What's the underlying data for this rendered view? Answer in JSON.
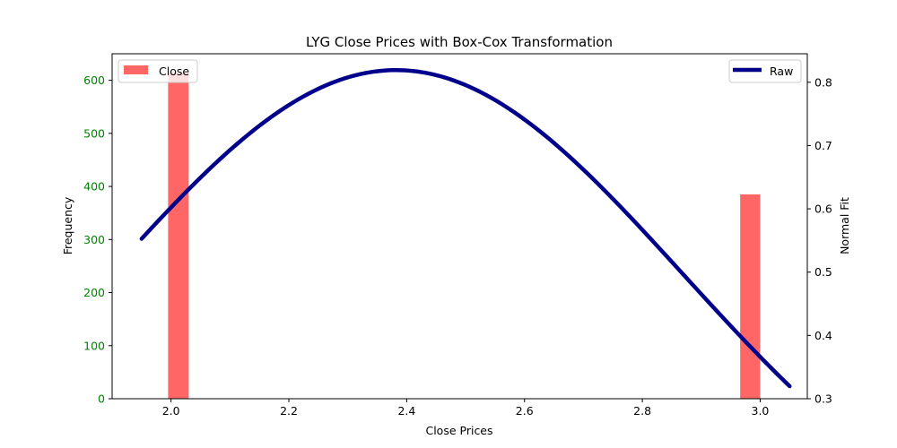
{
  "chart_data": {
    "type": "bar",
    "title": "LYG Close Prices with Box-Cox Transformation",
    "xlabel": "Close Prices",
    "ylabel_left": "Frequency",
    "ylabel_right": "Normal Fit",
    "xlim": [
      1.9,
      3.08
    ],
    "ylim_left": [
      0,
      650
    ],
    "ylim_right": [
      0.3,
      0.845
    ],
    "x_ticks": [
      2.0,
      2.2,
      2.4,
      2.6,
      2.8,
      3.0
    ],
    "x_tick_labels": [
      "2.0",
      "2.2",
      "2.4",
      "2.6",
      "2.8",
      "3.0"
    ],
    "y_left_ticks": [
      0,
      100,
      200,
      300,
      400,
      500,
      600
    ],
    "y_left_tick_labels": [
      "0",
      "100",
      "200",
      "300",
      "400",
      "500",
      "600"
    ],
    "y_right_ticks": [
      0.3,
      0.4,
      0.5,
      0.6,
      0.7,
      0.8
    ],
    "y_right_tick_labels": [
      "0.3",
      "0.4",
      "0.5",
      "0.6",
      "0.7",
      "0.8"
    ],
    "histogram": {
      "name": "Close",
      "color": "#ff6666",
      "bins": [
        {
          "x0": 1.995,
          "x1": 2.03,
          "count": 615
        },
        {
          "x0": 2.966,
          "x1": 3.0,
          "count": 385
        }
      ]
    },
    "curve": {
      "name": "Raw",
      "color": "#00008b",
      "mean": 2.382,
      "std": 0.487,
      "x_start": 1.95,
      "x_end": 3.05
    },
    "left_axis_color": "#008000",
    "legend_left": "top-left",
    "legend_right": "top-right",
    "grid": false
  }
}
